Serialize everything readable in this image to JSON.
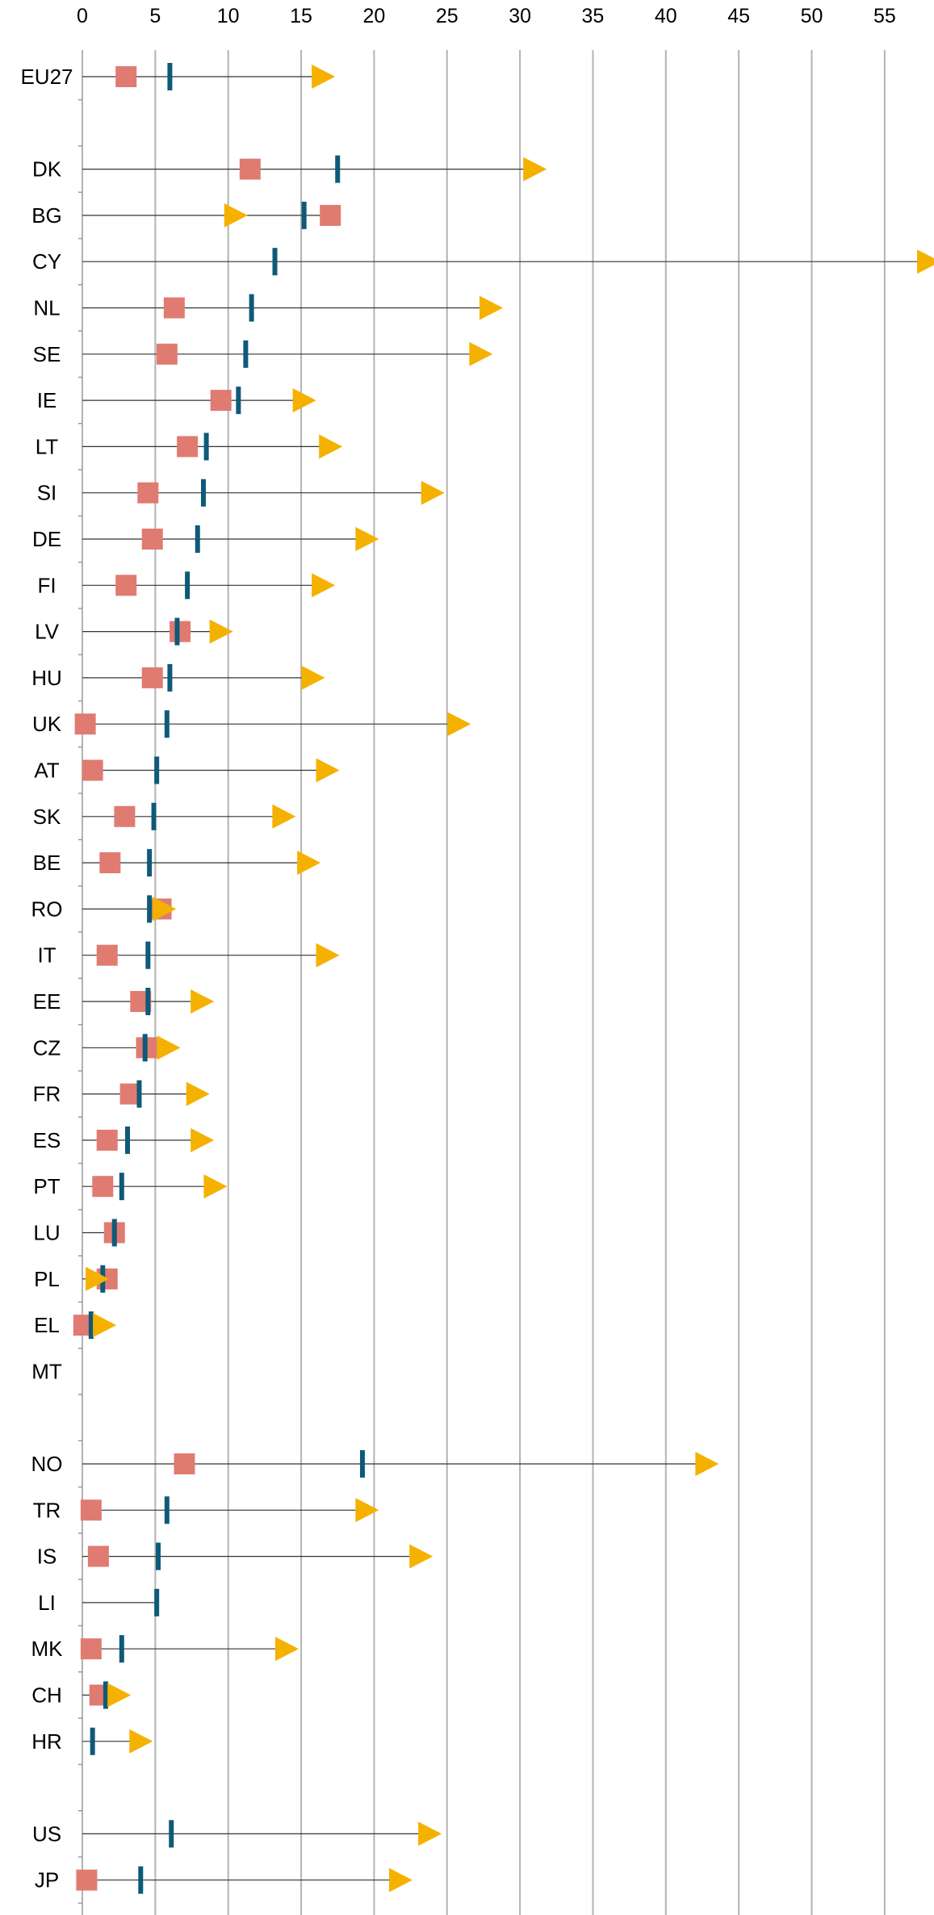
{
  "chart_data": {
    "type": "range-dot",
    "x_ticks": [
      0,
      5,
      10,
      15,
      20,
      25,
      30,
      35,
      40,
      45,
      50,
      55
    ],
    "xlim": [
      0,
      58
    ],
    "grid": "vertical",
    "marker_shapes": {
      "square": "square",
      "bar": "vertical-bar",
      "arrow": "triangle-arrow"
    },
    "colors": {
      "square": "#e07b72",
      "bar": "#0e5a78",
      "arrow": "#f5b100",
      "line": "#333333",
      "grid": "#b3b3b3"
    },
    "rows": [
      {
        "label": "EU27",
        "square": 3.0,
        "bar": 6.0,
        "arrow": 16.5
      },
      {
        "label": "",
        "gap": true
      },
      {
        "label": "DK",
        "square": 11.5,
        "bar": 17.5,
        "arrow": 31.0
      },
      {
        "label": "BG",
        "square": 17.0,
        "bar": 15.2,
        "arrow": 10.5
      },
      {
        "label": "CY",
        "square": null,
        "bar": 13.2,
        "arrow": 58.0
      },
      {
        "label": "NL",
        "square": 6.3,
        "bar": 11.6,
        "arrow": 28.0
      },
      {
        "label": "SE",
        "square": 5.8,
        "bar": 11.2,
        "arrow": 27.3
      },
      {
        "label": "IE",
        "square": 9.5,
        "bar": 10.7,
        "arrow": 15.2
      },
      {
        "label": "LT",
        "square": 7.2,
        "bar": 8.5,
        "arrow": 17.0
      },
      {
        "label": "SI",
        "square": 4.5,
        "bar": 8.3,
        "arrow": 24.0
      },
      {
        "label": "DE",
        "square": 4.8,
        "bar": 7.9,
        "arrow": 19.5
      },
      {
        "label": "FI",
        "square": 3.0,
        "bar": 7.2,
        "arrow": 16.5
      },
      {
        "label": "LV",
        "square": 6.7,
        "bar": 6.5,
        "arrow": 9.5
      },
      {
        "label": "HU",
        "square": 4.8,
        "bar": 6.0,
        "arrow": 15.8
      },
      {
        "label": "UK",
        "square": 0.2,
        "bar": 5.8,
        "arrow": 25.8
      },
      {
        "label": "AT",
        "square": 0.7,
        "bar": 5.1,
        "arrow": 16.8
      },
      {
        "label": "SK",
        "square": 2.9,
        "bar": 4.9,
        "arrow": 13.8
      },
      {
        "label": "BE",
        "square": 1.9,
        "bar": 4.6,
        "arrow": 15.5
      },
      {
        "label": "RO",
        "square": 5.4,
        "bar": 4.6,
        "arrow": 5.6
      },
      {
        "label": "IT",
        "square": 1.7,
        "bar": 4.5,
        "arrow": 16.8
      },
      {
        "label": "EE",
        "square": 4.0,
        "bar": 4.5,
        "arrow": 8.2
      },
      {
        "label": "CZ",
        "square": 4.4,
        "bar": 4.3,
        "arrow": 5.9
      },
      {
        "label": "FR",
        "square": 3.3,
        "bar": 3.9,
        "arrow": 7.9
      },
      {
        "label": "ES",
        "square": 1.7,
        "bar": 3.1,
        "arrow": 8.2
      },
      {
        "label": "PT",
        "square": 1.4,
        "bar": 2.7,
        "arrow": 9.1
      },
      {
        "label": "LU",
        "square": 2.2,
        "bar": 2.2,
        "arrow": null
      },
      {
        "label": "PL",
        "square": 1.7,
        "bar": 1.4,
        "arrow": 1.0
      },
      {
        "label": "EL",
        "square": 0.1,
        "bar": 0.6,
        "arrow": 1.5
      },
      {
        "label": "MT",
        "square": null,
        "bar": null,
        "arrow": null
      },
      {
        "label": "",
        "gap": true
      },
      {
        "label": "NO",
        "square": 7.0,
        "bar": 19.2,
        "arrow": 42.8
      },
      {
        "label": "TR",
        "square": 0.6,
        "bar": 5.8,
        "arrow": 19.5
      },
      {
        "label": "IS",
        "square": 1.1,
        "bar": 5.2,
        "arrow": 23.2
      },
      {
        "label": "LI",
        "square": null,
        "bar": 5.1,
        "arrow": null
      },
      {
        "label": "MK",
        "square": 0.6,
        "bar": 2.7,
        "arrow": 14.0
      },
      {
        "label": "CH",
        "square": 1.2,
        "bar": 1.6,
        "arrow": 2.5
      },
      {
        "label": "HR",
        "square": null,
        "bar": 0.7,
        "arrow": 4.0
      },
      {
        "label": "",
        "gap": true
      },
      {
        "label": "US",
        "square": null,
        "bar": 6.1,
        "arrow": 23.8
      },
      {
        "label": "JP",
        "square": 0.3,
        "bar": 4.0,
        "arrow": 21.8
      }
    ]
  }
}
